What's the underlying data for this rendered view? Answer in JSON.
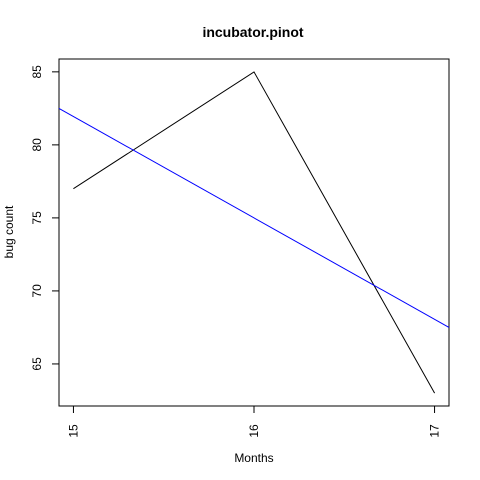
{
  "chart_data": {
    "type": "line",
    "title": "incubator.pinot",
    "xlabel": "Months",
    "ylabel": "bug count",
    "xlim": [
      14.92,
      17.08
    ],
    "ylim": [
      62.12,
      85.88
    ],
    "x_ticks": [
      15,
      16,
      17
    ],
    "y_ticks": [
      65,
      70,
      75,
      80,
      85
    ],
    "grid": false,
    "series": [
      {
        "color": "#000000",
        "x": [
          15,
          16,
          17
        ],
        "y": [
          77,
          85,
          63
        ]
      },
      {
        "color": "#0000ff",
        "x": [
          14.92,
          17.08
        ],
        "y": [
          82.5,
          67.5
        ]
      }
    ]
  }
}
